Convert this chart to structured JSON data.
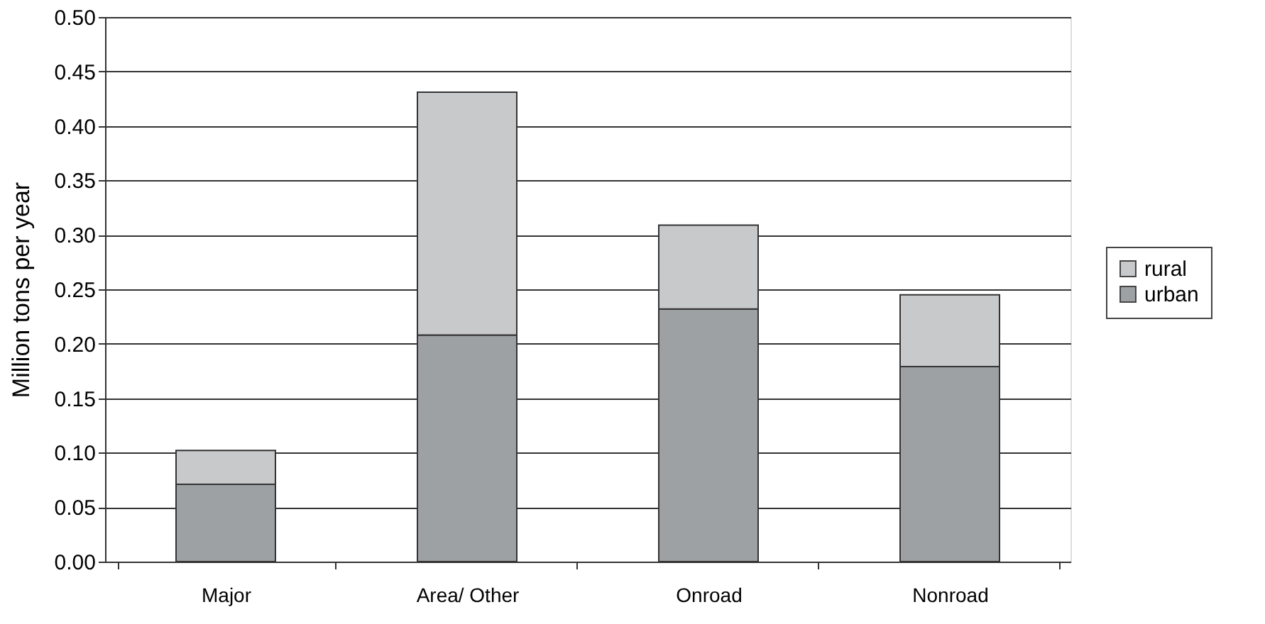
{
  "chart_data": {
    "type": "bar",
    "stacked": true,
    "ylabel": "Million tons per year",
    "categories": [
      "Major",
      "Area/ Other",
      "Onroad",
      "Nonroad"
    ],
    "series": [
      {
        "name": "urban",
        "color": "#9ea1a4",
        "values": [
          0.071,
          0.208,
          0.232,
          0.179
        ]
      },
      {
        "name": "rural",
        "color": "#c8c9cb",
        "values": [
          0.031,
          0.223,
          0.077,
          0.066
        ]
      }
    ],
    "ylim": [
      0,
      0.5
    ],
    "yticks": [
      {
        "value": 0,
        "label": "0.00"
      },
      0.05,
      {
        "value": 0.1,
        "label": "0.10"
      },
      0.15,
      {
        "value": 0.2,
        "label": "0.20"
      },
      0.25,
      {
        "value": 0.3,
        "label": "0.30"
      },
      0.35,
      {
        "value": 0.4,
        "label": "0.40"
      },
      0.45,
      {
        "value": 0.5,
        "label": "0.50"
      }
    ],
    "grid": "y",
    "legend": "right"
  }
}
